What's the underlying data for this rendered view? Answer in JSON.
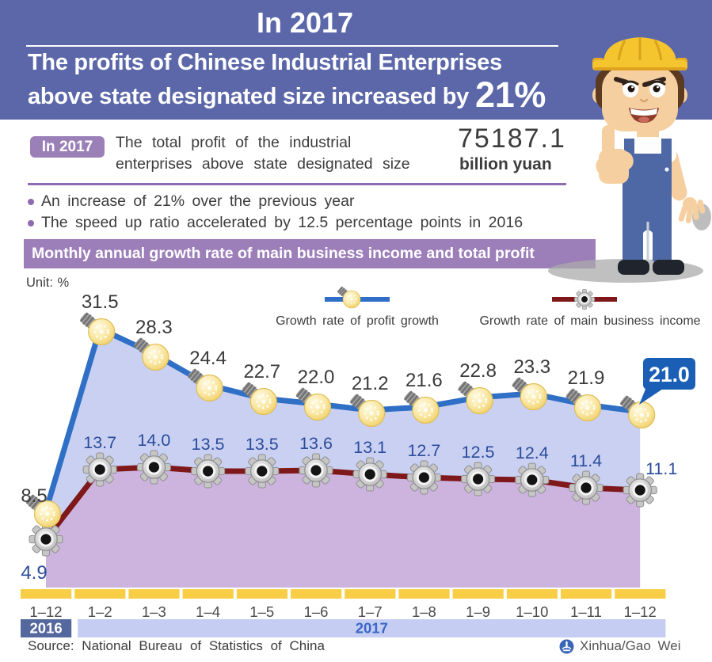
{
  "header": {
    "title": "In 2017",
    "subtitle_line1": "The profits of Chinese Industrial Enterprises",
    "subtitle_line2_prefix": "above state designated size increased by",
    "subtitle_highlight": "21%"
  },
  "summary": {
    "badge": "In 2017",
    "text_line1": "The total profit of the industrial",
    "text_line2": "enterprises above state designated size",
    "total_value": "75187.1",
    "total_unit": "billion yuan",
    "bullets": [
      "An increase of 21% over the previous year",
      "The speed up ratio accelerated by 12.5 percentage points in 2016"
    ]
  },
  "chart_data": {
    "type": "line",
    "title": "Monthly annual growth rate of main business income and total profit",
    "unit_label": "Unit: %",
    "categories": [
      "1–12",
      "1–2",
      "1–3",
      "1–4",
      "1–5",
      "1–6",
      "1–7",
      "1–8",
      "1–9",
      "1–10",
      "1–11",
      "1–12"
    ],
    "series": [
      {
        "name": "Growth rate of profit growth",
        "marker": "bulb",
        "color": "#2F6FC5",
        "label_color": "#3A3A3A",
        "values": [
          8.5,
          31.5,
          28.3,
          24.4,
          22.7,
          22.0,
          21.2,
          21.6,
          22.8,
          23.3,
          21.9,
          21.0
        ]
      },
      {
        "name": "Growth rate of main business income",
        "marker": "gear",
        "color": "#7E181B",
        "label_color": "#2B4C9B",
        "values": [
          4.9,
          13.7,
          14.0,
          13.5,
          13.5,
          13.6,
          13.1,
          12.7,
          12.5,
          12.4,
          11.4,
          11.1
        ]
      }
    ],
    "highlight_last_value": "21.0",
    "callout_color": "#1A5FB5",
    "fills": {
      "between_series": "#C9D0F1",
      "below_income": "#CDB4DF"
    },
    "axis": {
      "tick_band_color": "#F8CE46",
      "years": [
        {
          "label": "2016",
          "cells": 1,
          "bg": "#55689E",
          "text_color": "#FFFFFF"
        },
        {
          "label": "2017",
          "cells": 11,
          "bg": "#C5CDF2",
          "text_color": "#3A67C8"
        }
      ]
    },
    "ylim": [
      -1.5,
      38
    ],
    "grid": false,
    "legend_position": "top"
  },
  "footer": {
    "source": "Source: National Bureau of Statistics of China",
    "credit": "Xinhua/Gao Wei"
  }
}
